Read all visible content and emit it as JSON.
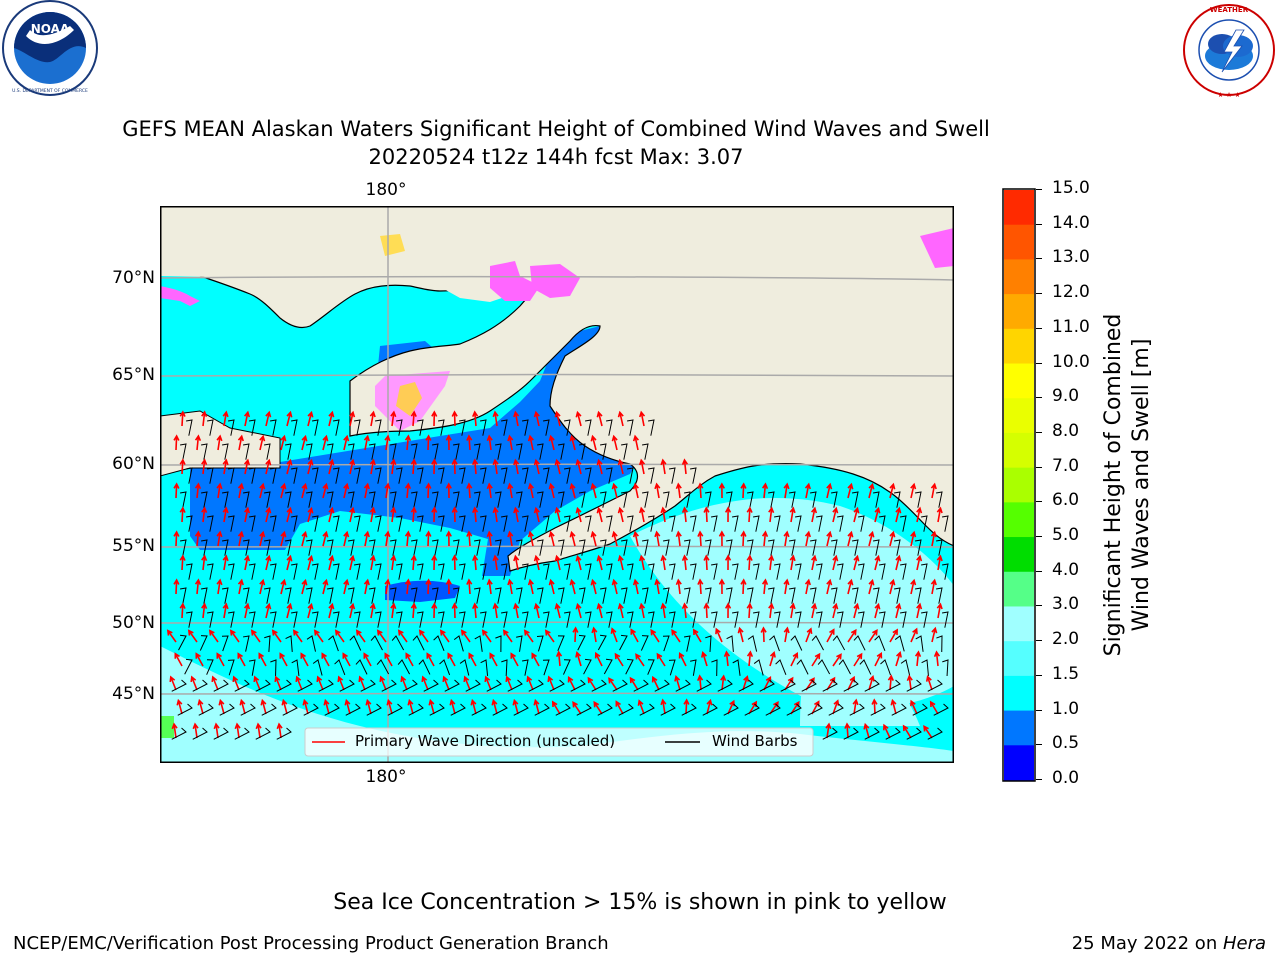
{
  "header": {
    "title_line1": "GEFS MEAN Alaskan Waters Significant Height of Combined Wind Waves and Swell",
    "title_line2": "20220524 t12z 144h fcst   Max: 3.07"
  },
  "logos": {
    "left": {
      "name": "NOAA",
      "ring_text": "NATIONAL OCEANIC AND ATMOSPHERIC ADMINISTRATION",
      "bottom_text": "U.S. DEPARTMENT OF COMMERCE"
    },
    "right": {
      "ring_text": "NATIONAL WEATHER SERVICE"
    }
  },
  "map": {
    "lat_labels": [
      "70°N",
      "65°N",
      "60°N",
      "55°N",
      "50°N",
      "45°N"
    ],
    "lon_label_top": "180°",
    "lon_label_bottom": "180°",
    "legend": {
      "wave_label": "Primary Wave Direction (unscaled)",
      "wind_label": "Wind Barbs"
    },
    "colors": {
      "land": "#efedde",
      "ocean_low": "#0077ff",
      "ocean_mid": "#00ffff",
      "ocean_high": "#a0ffff",
      "ice": "#ff33ff",
      "arrow": "#ff0000"
    }
  },
  "colorbar": {
    "title_line1": "Significant Height of Combined",
    "title_line2": "Wind Waves and Swell [m]",
    "ticks": [
      "15.0",
      "14.0",
      "13.0",
      "12.0",
      "11.0",
      "10.0",
      "9.0",
      "8.0",
      "7.0",
      "6.0",
      "5.0",
      "4.0",
      "3.0",
      "2.0",
      "1.5",
      "1.0",
      "0.5",
      "0.0"
    ],
    "colors": [
      "#ff0000",
      "#ff2a00",
      "#ff5500",
      "#ff8000",
      "#ffaa00",
      "#ffd500",
      "#ffff00",
      "#eaff00",
      "#d5ff00",
      "#aaff00",
      "#55ff00",
      "#00dd00",
      "#55ff88",
      "#a0ffff",
      "#55ffff",
      "#00ffff",
      "#0077ff",
      "#0000ff"
    ]
  },
  "footer": {
    "note": "Sea Ice Concentration > 15% is shown in pink to yellow",
    "credit": "NCEP/EMC/Verification Post Processing Product Generation Branch",
    "date_prefix": "25 May 2022 on ",
    "date_machine": "Hera"
  }
}
